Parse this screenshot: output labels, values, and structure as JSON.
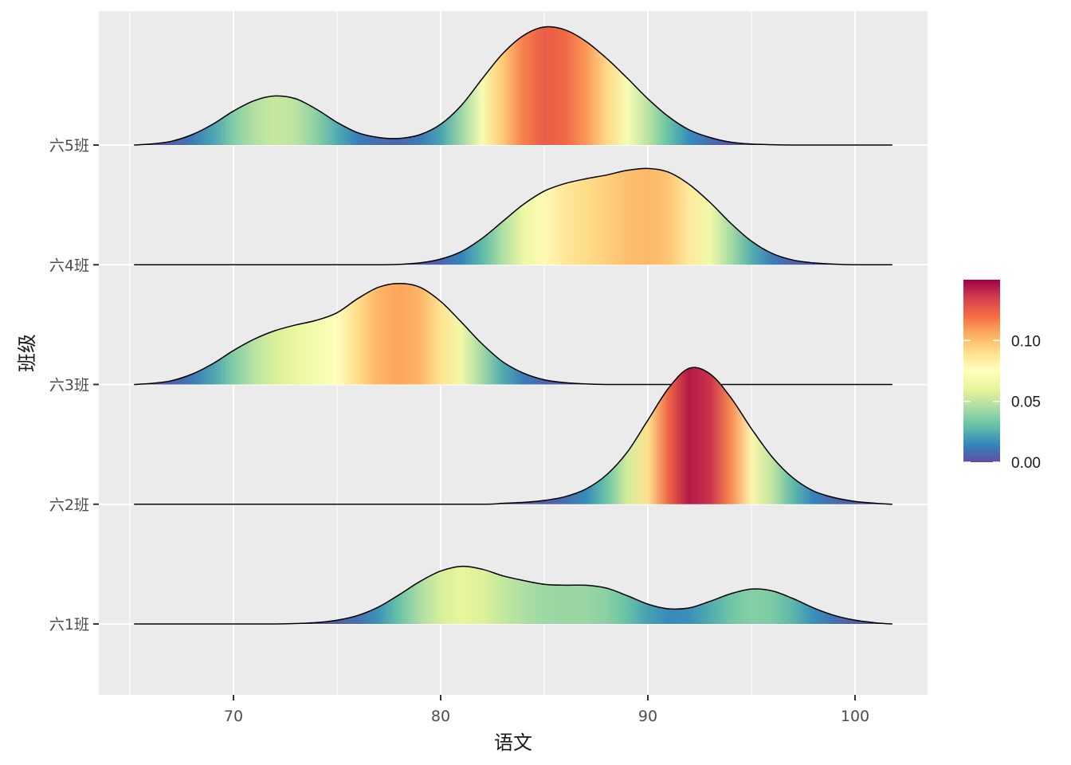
{
  "chart_data": {
    "type": "ridgeline",
    "xlabel": "语文",
    "ylabel": "班级",
    "xlim": [
      63.5,
      103.5
    ],
    "x_ticks": [
      70,
      80,
      90,
      100
    ],
    "x_tick_labels": [
      "70",
      "80",
      "90",
      "100"
    ],
    "x_grid_minor": [
      65,
      75,
      85,
      95
    ],
    "grid": true,
    "background": "#ebebeb",
    "gridline_color": "#ffffff",
    "categories": [
      "六1班",
      "六2班",
      "六3班",
      "六4班",
      "六5班"
    ],
    "fill_colormap": [
      "#5E4FA2",
      "#3288BD",
      "#66C2A5",
      "#ABDDA4",
      "#E6F598",
      "#FFFFBF",
      "#FEE08B",
      "#FDAE61",
      "#F46D43",
      "#D53E4F",
      "#9E0142"
    ],
    "colorbar": {
      "title": "",
      "range": [
        0,
        0.15
      ],
      "ticks": [
        0.0,
        0.05,
        0.1
      ],
      "tick_labels": [
        "0.00",
        "0.05",
        "0.10"
      ],
      "placement": "right"
    },
    "series": [
      {
        "name": "六1班",
        "x": [
          65.2,
          72,
          74,
          75,
          76,
          77,
          78,
          79,
          80,
          81,
          82,
          83,
          84,
          85,
          86,
          87,
          88,
          89,
          90,
          91,
          92,
          93,
          94,
          95,
          96,
          97,
          98,
          99,
          100,
          101,
          101.8
        ],
        "density": [
          0,
          0,
          0.0015,
          0.004,
          0.009,
          0.018,
          0.031,
          0.045,
          0.056,
          0.061,
          0.058,
          0.051,
          0.046,
          0.042,
          0.041,
          0.041,
          0.038,
          0.03,
          0.021,
          0.016,
          0.017,
          0.024,
          0.032,
          0.037,
          0.035,
          0.027,
          0.017,
          0.009,
          0.004,
          0.0012,
          0
        ]
      },
      {
        "name": "六2班",
        "x": [
          65.2,
          77,
          82,
          83,
          84,
          85,
          86,
          87,
          88,
          89,
          90,
          91,
          92,
          93,
          94,
          95,
          96,
          97,
          98,
          99,
          100,
          101,
          101.8
        ],
        "density": [
          0,
          0,
          0,
          0.001,
          0.002,
          0.004,
          0.008,
          0.016,
          0.031,
          0.055,
          0.089,
          0.123,
          0.144,
          0.138,
          0.113,
          0.08,
          0.05,
          0.028,
          0.014,
          0.007,
          0.003,
          0.001,
          0
        ]
      },
      {
        "name": "六3班",
        "x": [
          65.2,
          66,
          67,
          68,
          69,
          70,
          71,
          72,
          73,
          74,
          75,
          76,
          77,
          78,
          79,
          80,
          81,
          82,
          83,
          84,
          85,
          86,
          87,
          88,
          89,
          90,
          92,
          101.8
        ],
        "density": [
          0,
          0.001,
          0.004,
          0.011,
          0.022,
          0.036,
          0.048,
          0.057,
          0.063,
          0.068,
          0.076,
          0.091,
          0.103,
          0.107,
          0.103,
          0.088,
          0.066,
          0.043,
          0.024,
          0.012,
          0.005,
          0.002,
          0.0006,
          0,
          0,
          0,
          0,
          0
        ]
      },
      {
        "name": "六4班",
        "x": [
          65.2,
          75,
          77,
          78,
          79,
          80,
          81,
          82,
          83,
          84,
          85,
          86,
          87,
          88,
          89,
          90,
          91,
          92,
          93,
          94,
          95,
          96,
          97,
          98,
          99,
          100,
          101.8
        ],
        "density": [
          0,
          0,
          0,
          0.0005,
          0.002,
          0.006,
          0.014,
          0.028,
          0.046,
          0.064,
          0.078,
          0.086,
          0.091,
          0.095,
          0.1,
          0.102,
          0.098,
          0.085,
          0.066,
          0.044,
          0.025,
          0.012,
          0.005,
          0.002,
          0.0006,
          0,
          0
        ]
      },
      {
        "name": "六5班",
        "x": [
          65.2,
          66,
          67,
          68,
          69,
          70,
          71,
          72,
          73,
          74,
          75,
          76,
          77,
          78,
          79,
          80,
          81,
          82,
          83,
          84,
          85,
          86,
          87,
          88,
          89,
          90,
          91,
          92,
          93,
          94,
          95,
          96,
          97,
          98,
          99,
          100,
          101.8
        ],
        "density": [
          0,
          0.001,
          0.004,
          0.011,
          0.022,
          0.036,
          0.047,
          0.052,
          0.049,
          0.038,
          0.024,
          0.013,
          0.008,
          0.007,
          0.011,
          0.022,
          0.042,
          0.07,
          0.097,
          0.116,
          0.125,
          0.122,
          0.11,
          0.092,
          0.071,
          0.049,
          0.03,
          0.016,
          0.008,
          0.003,
          0.001,
          0.0003,
          0,
          0,
          0,
          0,
          0
        ]
      }
    ]
  }
}
